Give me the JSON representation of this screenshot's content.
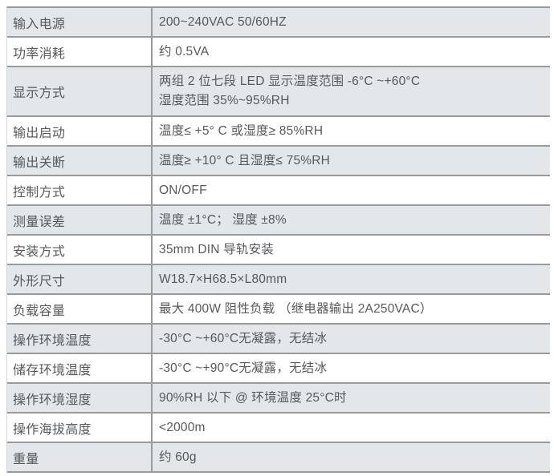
{
  "table": {
    "colors": {
      "row_shade": "#e3e7e9",
      "divider": "#989a9c",
      "text": "#56595c"
    },
    "rows": [
      {
        "label": "输入电源",
        "lines": [
          "200~240VAC 50/60HZ"
        ]
      },
      {
        "label": "功率消耗",
        "lines": [
          "约 0.5VA"
        ]
      },
      {
        "label": "显示方式",
        "lines": [
          "两组 2 位七段 LED 显示温度范围 -6°C ~+60°C",
          "湿度范围 35%~95%RH"
        ]
      },
      {
        "label": "输出启动",
        "lines": [
          "温度≤ +5° C 或湿度≥ 85%RH"
        ]
      },
      {
        "label": "输出关断",
        "lines": [
          "温度≥ +10° C 且湿度≤ 75%RH"
        ]
      },
      {
        "label": "控制方式",
        "lines": [
          "ON/OFF"
        ]
      },
      {
        "label": "测量误差",
        "lines": [
          "温度 ±1°C； 湿度 ±8%"
        ]
      },
      {
        "label": "安装方式",
        "lines": [
          "35mm DIN 导轨安装"
        ]
      },
      {
        "label": "外形尺寸",
        "lines": [
          "W18.7×H68.5×L80mm"
        ]
      },
      {
        "label": "负载容量",
        "lines": [
          "最大 400W 阻性负载 （继电器输出 2A250VAC）"
        ]
      },
      {
        "label": "操作环境温度",
        "lines": [
          "-30°C ~+60°C无凝露，无结冰"
        ]
      },
      {
        "label": "储存环境温度",
        "lines": [
          "-30°C ~+90°C无凝露，无结冰"
        ]
      },
      {
        "label": "操作环境湿度",
        "lines": [
          "90%RH 以下 @ 环境温度 25°C时"
        ]
      },
      {
        "label": "操作海拔高度",
        "lines": [
          "<2000m"
        ]
      },
      {
        "label": "重量",
        "lines": [
          "约 60g"
        ]
      }
    ]
  }
}
